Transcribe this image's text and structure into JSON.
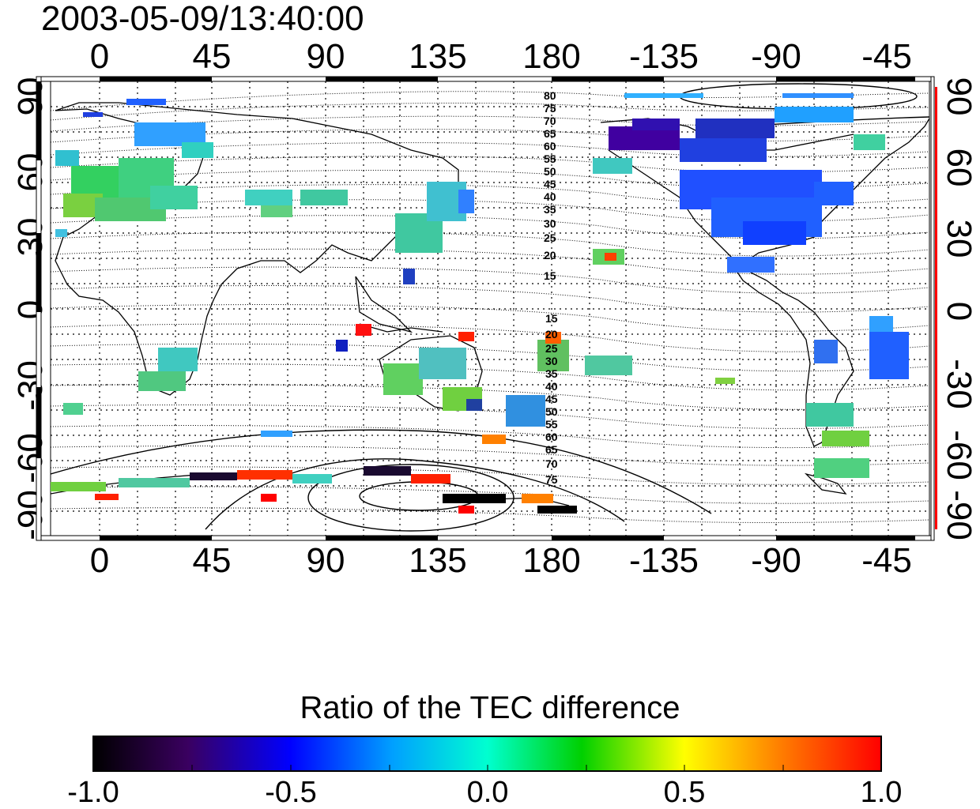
{
  "timestamp": "2003-05-09/13:40:00",
  "lon_ticks": [
    "0",
    "45",
    "90",
    "135",
    "180",
    "-135",
    "-90",
    "-45"
  ],
  "lat_ticks_left": [
    "90",
    "60",
    "30",
    "0",
    "-30",
    "-60",
    "-90"
  ],
  "lat_ticks_right": [
    "90",
    "60",
    "30",
    "0",
    "-30",
    "-60",
    "-90"
  ],
  "contour_labels_north": [
    "80",
    "75",
    "70",
    "65",
    "60",
    "55",
    "50",
    "45",
    "40",
    "35",
    "30",
    "25",
    "20",
    "15"
  ],
  "contour_labels_south": [
    "15",
    "20",
    "25",
    "30",
    "35",
    "40",
    "45",
    "50",
    "55",
    "60",
    "65",
    "70",
    "75"
  ],
  "colorbar": {
    "title": "Ratio of the TEC difference",
    "ticks": [
      "-1.0",
      "-0.5",
      "0.0",
      "0.5",
      "1.0"
    ],
    "min": -1.0,
    "max": 1.0
  },
  "colors": {
    "frame": "#000000",
    "right_axis_accent": "#ff0000",
    "background": "#ffffff"
  }
}
